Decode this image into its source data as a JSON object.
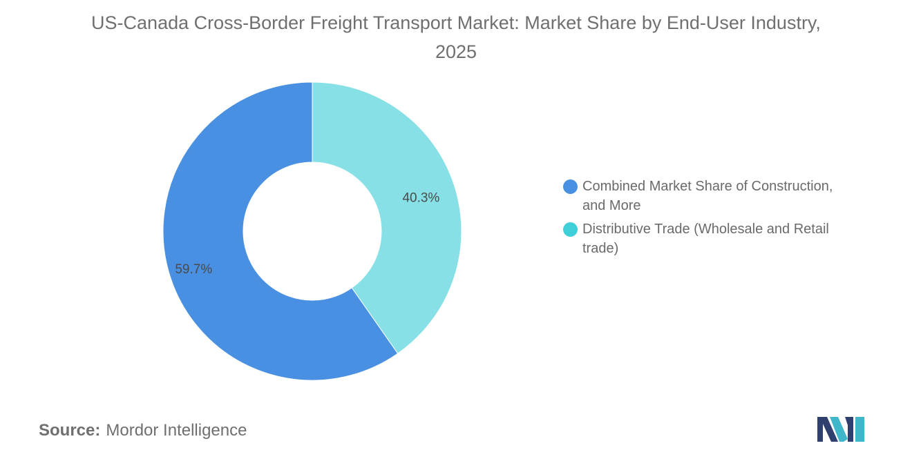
{
  "title": "US-Canada Cross-Border Freight Transport Market: Market Share by End-User Industry, 2025",
  "source": {
    "label": "Source:",
    "text": "Mordor Intelligence"
  },
  "chart_data": {
    "type": "pie",
    "style": "donut",
    "title": "US-Canada Cross-Border Freight Transport Market: Market Share by End-User Industry, 2025",
    "legend_position": "right",
    "slices": [
      {
        "name": "Combined Market Share of Construction, and More",
        "legend_lines": [
          "Combined Market Share of Construction,",
          "and More"
        ],
        "value": 59.7,
        "label": "59.7%",
        "color": "#4a90e2"
      },
      {
        "name": "Distributive Trade (Wholesale and Retail trade)",
        "legend_lines": [
          "Distributive Trade (Wholesale and Retail",
          "trade)"
        ],
        "value": 40.3,
        "label": "40.3%",
        "color": "#86e0e6"
      }
    ],
    "legend_colors": [
      "#4a90e2",
      "#3fcfd9"
    ]
  },
  "logo": {
    "colors": [
      "#2f3f6e",
      "#3fb6c9"
    ]
  }
}
